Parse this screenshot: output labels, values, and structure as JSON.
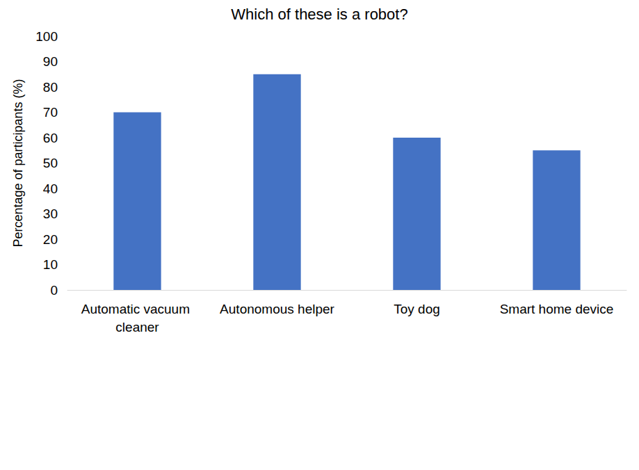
{
  "chart_data": {
    "type": "bar",
    "title": "Which of these is a robot?",
    "y_label": "Percentage of participants (%)",
    "categories": [
      "Automatic vacuum cleaner",
      "Autonomous helper",
      "Toy dog",
      "Smart home device"
    ],
    "values": [
      70,
      85,
      60,
      55
    ],
    "color": "#4472c4",
    "ylim": [
      0,
      100
    ],
    "yticks": [
      0,
      10,
      20,
      30,
      40,
      50,
      60,
      70,
      80,
      90,
      100
    ],
    "grid": false
  }
}
